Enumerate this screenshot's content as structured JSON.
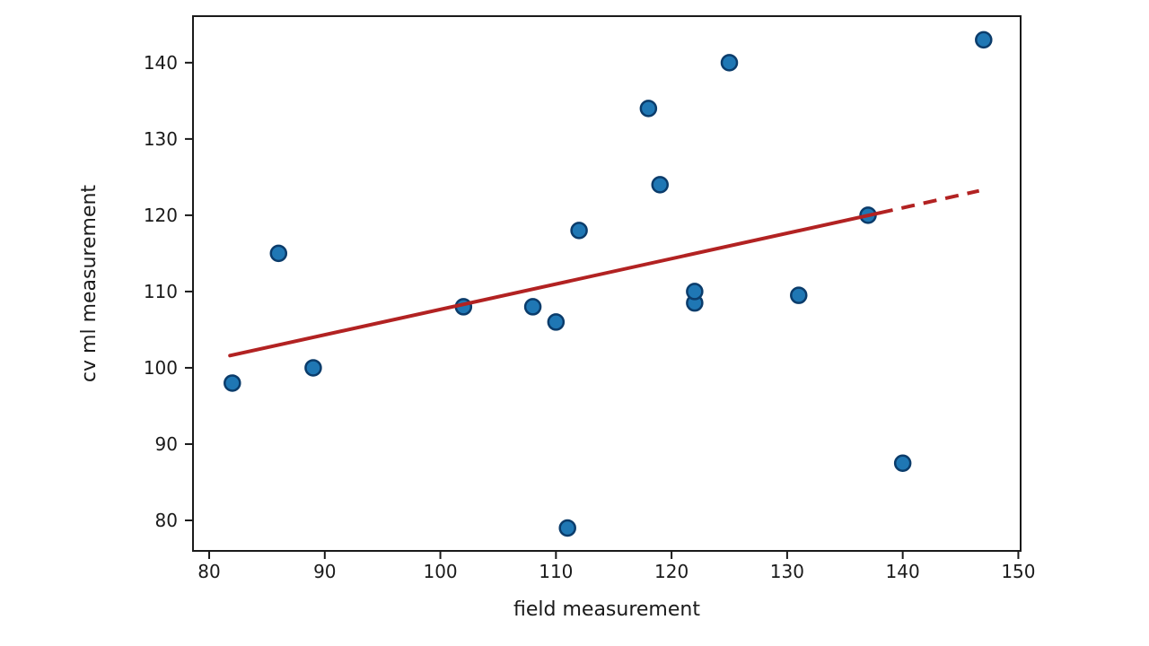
{
  "chart_data": {
    "type": "scatter",
    "title": "",
    "xlabel": "field measurement",
    "ylabel": "cv ml measurement",
    "xlim": [
      78.6,
      150.2
    ],
    "ylim": [
      76.0,
      146.1
    ],
    "x_ticks": [
      "80",
      "90",
      "100",
      "110",
      "120",
      "130",
      "140",
      "150"
    ],
    "x_tick_values": [
      80,
      90,
      100,
      110,
      120,
      130,
      140,
      150
    ],
    "y_ticks": [
      "80",
      "90",
      "100",
      "110",
      "120",
      "130",
      "140"
    ],
    "y_tick_values": [
      80,
      90,
      100,
      110,
      120,
      130,
      140
    ],
    "grid": false,
    "legend": null,
    "points": [
      [
        82,
        98
      ],
      [
        86,
        115
      ],
      [
        89,
        100
      ],
      [
        102,
        108
      ],
      [
        108,
        108
      ],
      [
        110,
        106
      ],
      [
        111,
        79
      ],
      [
        112,
        118
      ],
      [
        118,
        134
      ],
      [
        119,
        124
      ],
      [
        122,
        108.5
      ],
      [
        122,
        110
      ],
      [
        125,
        140
      ],
      [
        131,
        109.5
      ],
      [
        137,
        120
      ],
      [
        140,
        87.5
      ],
      [
        147,
        143
      ]
    ],
    "trend_line": {
      "slope": 0.333,
      "intercept": 74.4,
      "solid_segment": [
        [
          81.8,
          101.6
        ],
        [
          138.0,
          120.3
        ]
      ],
      "dashed_segment": [
        [
          138.0,
          120.3
        ],
        [
          146.6,
          123.2
        ]
      ]
    },
    "colors": {
      "marker_fill": "#1f77b4",
      "marker_edge": "#0b3c6b",
      "trend_line": "#b22222",
      "spine": "#1a1a1a",
      "tick_text": "#1a1a1a"
    }
  }
}
